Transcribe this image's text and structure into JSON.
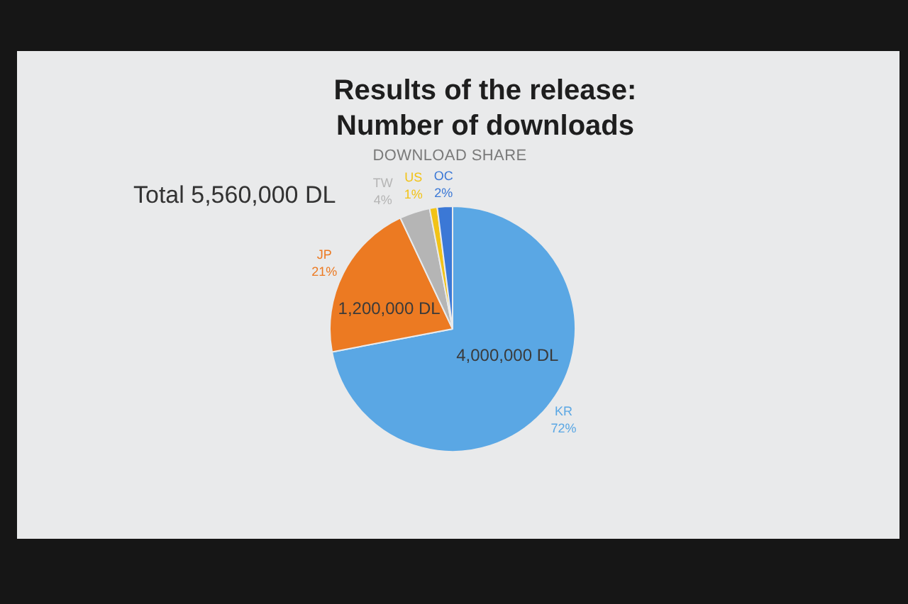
{
  "chart_data": {
    "type": "pie",
    "title": "Results of the release: Number of downloads",
    "subtitle": "DOWNLOAD SHARE",
    "categories": [
      "KR",
      "JP",
      "TW",
      "US",
      "OC"
    ],
    "values": [
      72,
      21,
      4,
      1,
      2
    ],
    "colors": [
      "#5aa7e4",
      "#ec7a22",
      "#b5b5b5",
      "#f2c317",
      "#3b78d6"
    ],
    "value_labels": [
      "72%",
      "21%",
      "4%",
      "1%",
      "2%"
    ],
    "annotations": [
      "Total 5,560,000 DL",
      {
        "text": "4,000,000 DL",
        "x": "KR"
      },
      {
        "text": "1,200,000 DL",
        "x": "JP"
      }
    ]
  }
}
